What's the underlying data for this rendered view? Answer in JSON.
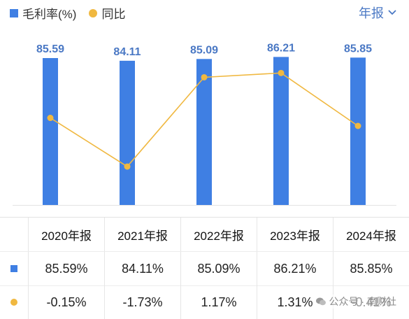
{
  "legend": {
    "bar_label": "毛利率(%)",
    "line_label": "同比"
  },
  "period_selector": {
    "label": "年报"
  },
  "table": {
    "headers": [
      "2020年报",
      "2021年报",
      "2022年报",
      "2023年报",
      "2024年报"
    ],
    "row1": [
      "85.59%",
      "84.11%",
      "85.09%",
      "86.21%",
      "85.85%"
    ],
    "row2": [
      "-0.15%",
      "-1.73%",
      "1.17%",
      "1.31%",
      "-0.41%"
    ]
  },
  "watermark": {
    "text": "公众号 · 南财社"
  },
  "colors": {
    "bar": "#3f7fe3",
    "line": "#f0b840",
    "bar_label": "#4a78c4",
    "positive": "#d9463e",
    "negative": "#2e9b6a"
  },
  "chart_data": {
    "type": "bar",
    "categories": [
      "2020年报",
      "2021年报",
      "2022年报",
      "2023年报",
      "2024年报"
    ],
    "series": [
      {
        "name": "毛利率(%)",
        "type": "bar",
        "values": [
          85.59,
          84.11,
          85.09,
          86.21,
          85.85
        ],
        "labels": [
          "85.59",
          "84.11",
          "85.09",
          "86.21",
          "85.85"
        ]
      },
      {
        "name": "同比",
        "type": "line",
        "values": [
          -0.15,
          -1.73,
          1.17,
          1.31,
          -0.41
        ]
      }
    ],
    "title": "",
    "xlabel": "",
    "ylabel": "",
    "grid": false,
    "legend_position": "top-left"
  }
}
